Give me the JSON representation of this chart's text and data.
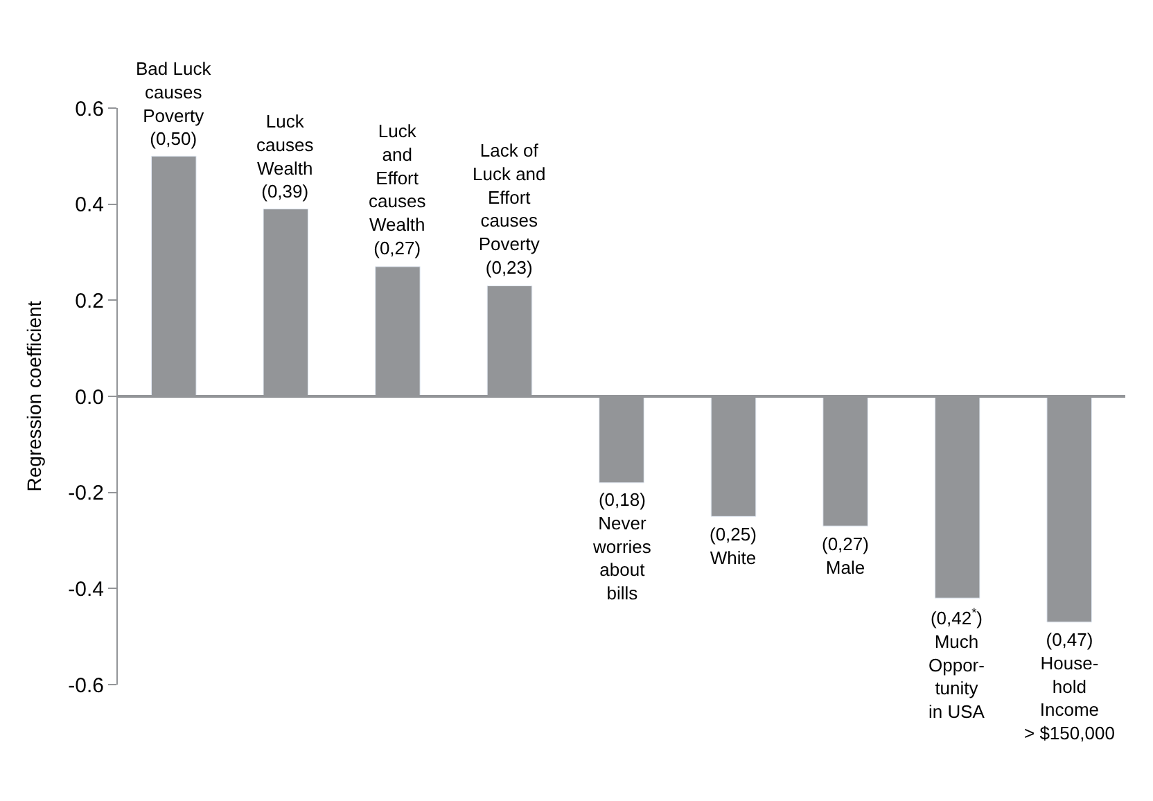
{
  "chart_data": {
    "type": "bar",
    "ylabel": "Regression coefficient",
    "categories": [
      "Bad Luck\ncauses\nPoverty",
      "Luck\ncauses\nWealth",
      "Luck\nand\nEffort\ncauses\nWealth",
      "Lack of\nLuck and\nEffort\ncauses\nPoverty",
      "Never\nworries\nabout\nbills",
      "White",
      "Male",
      "Much\nOppor-\ntunity\nin USA",
      "House-\nhold\nIncome\n> $150,000"
    ],
    "values": [
      0.5,
      0.39,
      0.27,
      0.23,
      -0.18,
      -0.25,
      -0.27,
      -0.42,
      -0.47
    ],
    "value_labels": [
      "(0,50)",
      "(0,39)",
      "(0,27)",
      "(0,23)",
      "(0,18)",
      "(0,25)",
      "(0,27)",
      "(0,42$^{*}$)",
      "(0,47)"
    ],
    "color": "#939598",
    "ylim": [
      -0.6,
      0.6
    ],
    "yticks": [
      0.6,
      0.4,
      0.2,
      {
        "value": 0,
        "label": "0.0"
      },
      -0.2,
      -0.4,
      -0.6
    ],
    "legend": false
  }
}
